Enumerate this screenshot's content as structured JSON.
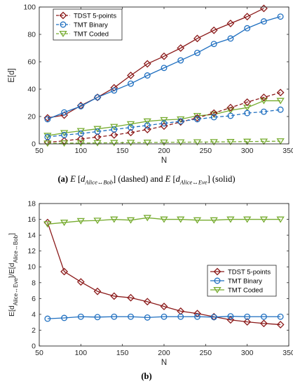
{
  "colors": {
    "tdst": "#8B1A1A",
    "binary": "#1F6FC0",
    "coded": "#77AC30",
    "axis": "#262626",
    "grid": "#d0d0d0",
    "legend_border": "#262626"
  },
  "caption_a": {
    "tag": "(a)",
    "e1": "E",
    "lb1": "[",
    "d1": "d",
    "sub1": "Alice↔Bob",
    "rb1": "]",
    "t1": "(dashed) and",
    "e2": "E",
    "lb2": "[",
    "d2": "d",
    "sub2": "Alice↔Eve",
    "rb2": "]",
    "t2": "(solid)"
  },
  "caption_b": {
    "tag": "(b)"
  },
  "chart_data": [
    {
      "type": "line",
      "id": "a",
      "xlabel": "N",
      "ylabel": "E[d]",
      "xlim": [
        50,
        350
      ],
      "ylim": [
        0,
        100
      ],
      "xticks": [
        "50",
        "100",
        "150",
        "200",
        "250",
        "300",
        "350"
      ],
      "yticks": [
        "0",
        "20",
        "40",
        "60",
        "80",
        "100"
      ],
      "legend_position": "top-left",
      "legend": [
        "TDST 5-points",
        "TMT Binary",
        "TMT Coded"
      ],
      "x": [
        60,
        80,
        100,
        120,
        140,
        160,
        180,
        200,
        220,
        240,
        260,
        280,
        300,
        320,
        340
      ],
      "series": [
        {
          "name": "TDST 5-points",
          "key": "tdst",
          "marker": "diamond",
          "style": "solid",
          "values": [
            19,
            21,
            28,
            34,
            41,
            50,
            58.5,
            64,
            70,
            77,
            83,
            88,
            93,
            99,
            null
          ]
        },
        {
          "name": "TMT Binary",
          "key": "binary",
          "marker": "circle",
          "style": "solid",
          "values": [
            18,
            23,
            27.5,
            34,
            39,
            44,
            50,
            55.5,
            61,
            66.5,
            73,
            77,
            84.5,
            89.5,
            93
          ]
        },
        {
          "name": "TMT Coded",
          "key": "coded",
          "marker": "triangle",
          "style": "solid",
          "values": [
            6,
            8,
            9.5,
            11,
            12.5,
            14.5,
            16.5,
            17.5,
            18,
            20.5,
            21.5,
            24.5,
            26.5,
            31.5,
            31.5
          ]
        },
        {
          "name": "TDST 5-points",
          "key": "tdst",
          "marker": "diamond",
          "style": "dashed",
          "values": [
            1.2,
            2.2,
            3.6,
            5,
            6.5,
            8.3,
            10.5,
            13,
            16,
            19,
            22.5,
            26.5,
            30.5,
            34,
            37.5
          ]
        },
        {
          "name": "TMT Binary",
          "key": "binary",
          "marker": "circle",
          "style": "dashed",
          "values": [
            5,
            6.5,
            7.5,
            9,
            10.5,
            12,
            13.5,
            15,
            16.5,
            18,
            19.5,
            20.5,
            22.5,
            23.5,
            25
          ]
        },
        {
          "name": "TMT Coded",
          "key": "coded",
          "marker": "triangle",
          "style": "dashed",
          "values": [
            0.4,
            0.5,
            0.6,
            0.7,
            0.8,
            0.9,
            1.0,
            1.1,
            1.2,
            1.3,
            1.4,
            1.5,
            1.7,
            1.8,
            2.0
          ]
        }
      ]
    },
    {
      "type": "line",
      "id": "b",
      "xlabel": "N",
      "ylabel": "E[d",
      "ylabel_sub1": "Alice↔Eve",
      "ylabel_mid": "]/E[d",
      "ylabel_sub2": "Alice↔Bob",
      "ylabel_end": "]",
      "xlim": [
        50,
        350
      ],
      "ylim": [
        0,
        18
      ],
      "xticks": [
        "50",
        "100",
        "150",
        "200",
        "250",
        "300",
        "350"
      ],
      "yticks": [
        "0",
        "2",
        "4",
        "6",
        "8",
        "10",
        "12",
        "14",
        "16",
        "18"
      ],
      "legend_position": "right",
      "legend": [
        "TDST 5-points",
        "TMT Binary",
        "TMT Coded"
      ],
      "x": [
        60,
        80,
        100,
        120,
        140,
        160,
        180,
        200,
        220,
        240,
        260,
        280,
        300,
        320,
        340
      ],
      "series": [
        {
          "name": "TDST 5-points",
          "key": "tdst",
          "marker": "diamond",
          "style": "solid",
          "values": [
            15.6,
            9.4,
            8.1,
            6.9,
            6.3,
            6.1,
            5.6,
            5.0,
            4.4,
            4.1,
            3.7,
            3.3,
            3.05,
            2.85,
            2.7
          ]
        },
        {
          "name": "TMT Binary",
          "key": "binary",
          "marker": "circle",
          "style": "solid",
          "values": [
            3.45,
            3.55,
            3.7,
            3.65,
            3.7,
            3.7,
            3.6,
            3.7,
            3.7,
            3.7,
            3.65,
            3.75,
            3.7,
            3.7,
            3.7
          ]
        },
        {
          "name": "TMT Coded",
          "key": "coded",
          "marker": "triangle",
          "style": "solid",
          "values": [
            15.4,
            15.6,
            15.8,
            15.85,
            16.0,
            15.9,
            16.2,
            16.0,
            16.0,
            15.9,
            15.9,
            16.0,
            16.0,
            16.0,
            16.0
          ]
        }
      ]
    }
  ]
}
